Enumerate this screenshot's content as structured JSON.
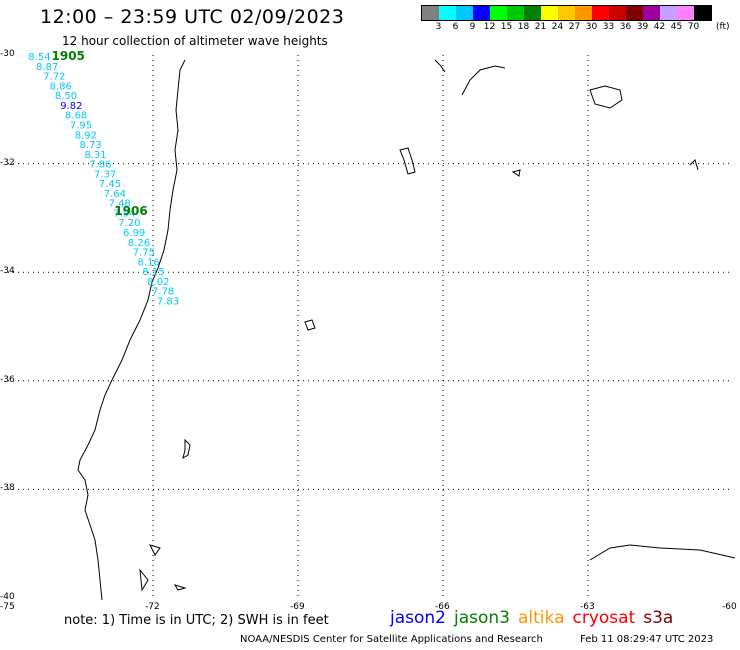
{
  "title": "12:00 – 23:59 UTC 02/09/2023",
  "subtitle": "12 hour collection of altimeter wave heights",
  "legend": {
    "unit": "(ft)",
    "ticks": [
      "3",
      "6",
      "9",
      "12",
      "15",
      "18",
      "21",
      "24",
      "27",
      "30",
      "33",
      "36",
      "39",
      "42",
      "45",
      "70"
    ],
    "colors": [
      "#808080",
      "#00ffff",
      "#00c8ff",
      "#0000ff",
      "#00ff00",
      "#00c800",
      "#008000",
      "#ffff00",
      "#ffc800",
      "#ff9600",
      "#ff0000",
      "#c80000",
      "#800000",
      "#a000a0",
      "#c8a0ff",
      "#ff80ff",
      "#000000"
    ]
  },
  "axes": {
    "lat_labels": [
      "-30",
      "-32",
      "-34",
      "-36",
      "-38",
      "-40"
    ],
    "lon_labels": [
      "-75",
      "-72",
      "-69",
      "-66",
      "-63",
      "-60"
    ],
    "lat_range": [
      -40,
      -30
    ],
    "lon_range": [
      -75,
      -60
    ]
  },
  "track": {
    "color": "#00c8ff",
    "highlight_color": "#0000ff",
    "times": [
      {
        "label": "1905",
        "lon": -74.1,
        "lat": -30.0
      },
      {
        "label": "1906",
        "lon": -72.8,
        "lat": -32.85
      }
    ],
    "points": [
      {
        "label": "8.54",
        "lon": -74.58,
        "lat": -30.02
      },
      {
        "label": "8.87",
        "lon": -74.42,
        "lat": -30.2
      },
      {
        "label": "7.72",
        "lon": -74.27,
        "lat": -30.38
      },
      {
        "label": "8.86",
        "lon": -74.14,
        "lat": -30.56
      },
      {
        "label": "8.50",
        "lon": -74.03,
        "lat": -30.74
      },
      {
        "label": "9.82",
        "lon": -73.92,
        "lat": -30.92,
        "highlight": true
      },
      {
        "label": "8.68",
        "lon": -73.82,
        "lat": -31.1
      },
      {
        "label": "7.95",
        "lon": -73.72,
        "lat": -31.28
      },
      {
        "label": "8.92",
        "lon": -73.62,
        "lat": -31.46
      },
      {
        "label": "8.73",
        "lon": -73.52,
        "lat": -31.64
      },
      {
        "label": "8.31",
        "lon": -73.42,
        "lat": -31.82
      },
      {
        "label": "7.86",
        "lon": -73.32,
        "lat": -32.0
      },
      {
        "label": "7.37",
        "lon": -73.22,
        "lat": -32.18
      },
      {
        "label": "7.45",
        "lon": -73.12,
        "lat": -32.36
      },
      {
        "label": "7.64",
        "lon": -73.02,
        "lat": -32.54
      },
      {
        "label": "7.48",
        "lon": -72.92,
        "lat": -32.72
      },
      {
        "label": "7.94",
        "lon": -72.82,
        "lat": -32.9
      },
      {
        "label": "7.20",
        "lon": -72.72,
        "lat": -33.08
      },
      {
        "label": "6.99",
        "lon": -72.62,
        "lat": -33.26
      },
      {
        "label": "8.26",
        "lon": -72.52,
        "lat": -33.44
      },
      {
        "label": "7.75",
        "lon": -72.42,
        "lat": -33.62
      },
      {
        "label": "8.16",
        "lon": -72.32,
        "lat": -33.8
      },
      {
        "label": "8.15",
        "lon": -72.22,
        "lat": -33.98
      },
      {
        "label": "8.02",
        "lon": -72.12,
        "lat": -34.16
      },
      {
        "label": "7.78",
        "lon": -72.02,
        "lat": -34.34
      },
      {
        "label": "7.83",
        "lon": -71.92,
        "lat": -34.52
      }
    ]
  },
  "note": "note: 1) Time is in UTC; 2) SWH is in feet",
  "satellites": [
    {
      "name": "jason2",
      "color": "#0000ff"
    },
    {
      "name": "jason3",
      "color": "#008000"
    },
    {
      "name": "altika",
      "color": "#ff9600"
    },
    {
      "name": "cryosat",
      "color": "#ff0000"
    },
    {
      "name": "s3a",
      "color": "#800000"
    }
  ],
  "credit": "NOAA/NESDIS Center for Satellite Applications and Research",
  "timestamp": "Feb 11 08:29:47 UTC 2023"
}
